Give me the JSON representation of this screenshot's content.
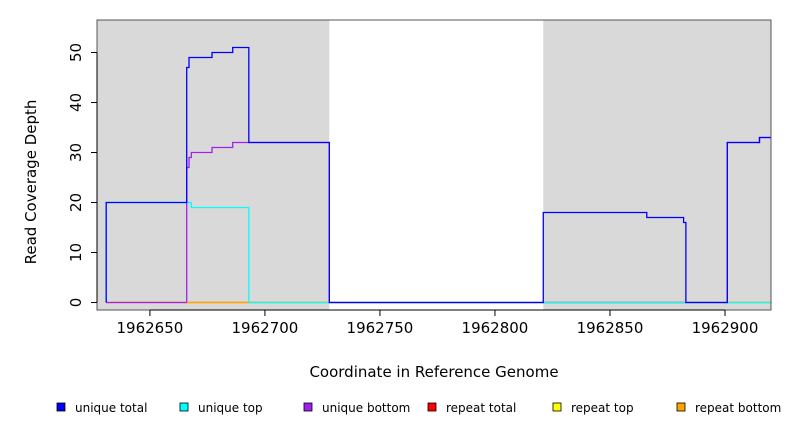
{
  "chart_data": {
    "type": "line",
    "title": "",
    "xlabel": "Coordinate in Reference Genome",
    "ylabel": "Read Coverage Depth",
    "xlim": [
      1962627,
      1962920
    ],
    "ylim": [
      -1.5,
      56.5
    ],
    "x_ticks": [
      1962650,
      1962700,
      1962750,
      1962800,
      1962850,
      1962900
    ],
    "y_ticks": [
      0,
      10,
      20,
      30,
      40,
      50
    ],
    "background_shading": {
      "color": "#d9d9d9",
      "x_ranges": [
        [
          1962627,
          1962728
        ],
        [
          1962821,
          1962920
        ]
      ]
    },
    "legend_position": "bottom",
    "series": [
      {
        "name": "unique total",
        "color": "#0000ff",
        "points": [
          [
            1962631,
            0
          ],
          [
            1962631,
            20
          ],
          [
            1962666,
            20
          ],
          [
            1962666,
            47
          ],
          [
            1962667,
            47
          ],
          [
            1962667,
            49
          ],
          [
            1962677,
            49
          ],
          [
            1962677,
            50
          ],
          [
            1962686,
            50
          ],
          [
            1962686,
            51
          ],
          [
            1962693,
            51
          ],
          [
            1962693,
            32
          ],
          [
            1962728,
            32
          ],
          [
            1962728,
            0
          ],
          [
            1962821,
            0
          ],
          [
            1962821,
            18
          ],
          [
            1962866,
            18
          ],
          [
            1962866,
            17
          ],
          [
            1962882,
            17
          ],
          [
            1962882,
            16
          ],
          [
            1962883,
            16
          ],
          [
            1962883,
            0
          ],
          [
            1962901,
            0
          ],
          [
            1962901,
            32
          ],
          [
            1962915,
            32
          ],
          [
            1962915,
            33
          ],
          [
            1962920,
            33
          ]
        ]
      },
      {
        "name": "unique top",
        "color": "#00ffff",
        "points": [
          [
            1962631,
            0
          ],
          [
            1962631,
            20
          ],
          [
            1962666,
            20
          ],
          [
            1962666,
            20
          ],
          [
            1962668,
            20
          ],
          [
            1962668,
            19
          ],
          [
            1962693,
            19
          ],
          [
            1962693,
            0
          ],
          [
            1962920,
            0
          ]
        ]
      },
      {
        "name": "unique bottom",
        "color": "#a020f0",
        "points": [
          [
            1962631,
            0
          ],
          [
            1962666,
            0
          ],
          [
            1962666,
            27
          ],
          [
            1962667,
            27
          ],
          [
            1962667,
            29
          ],
          [
            1962668,
            29
          ],
          [
            1962668,
            30
          ],
          [
            1962677,
            30
          ],
          [
            1962677,
            31
          ],
          [
            1962686,
            31
          ],
          [
            1962686,
            32
          ],
          [
            1962728,
            32
          ],
          [
            1962728,
            0
          ],
          [
            1962901,
            0
          ],
          [
            1962901,
            32
          ],
          [
            1962915,
            32
          ],
          [
            1962915,
            33
          ],
          [
            1962920,
            33
          ]
        ]
      },
      {
        "name": "repeat total",
        "color": "#ff0000",
        "points": [
          [
            1962631,
            0
          ],
          [
            1962920,
            0
          ]
        ]
      },
      {
        "name": "repeat top",
        "color": "#ffff00",
        "points": [
          [
            1962631,
            0
          ],
          [
            1962920,
            0
          ]
        ]
      },
      {
        "name": "repeat bottom",
        "color": "#ffa500",
        "points": [
          [
            1962666,
            0
          ],
          [
            1962693,
            0
          ]
        ]
      }
    ]
  }
}
